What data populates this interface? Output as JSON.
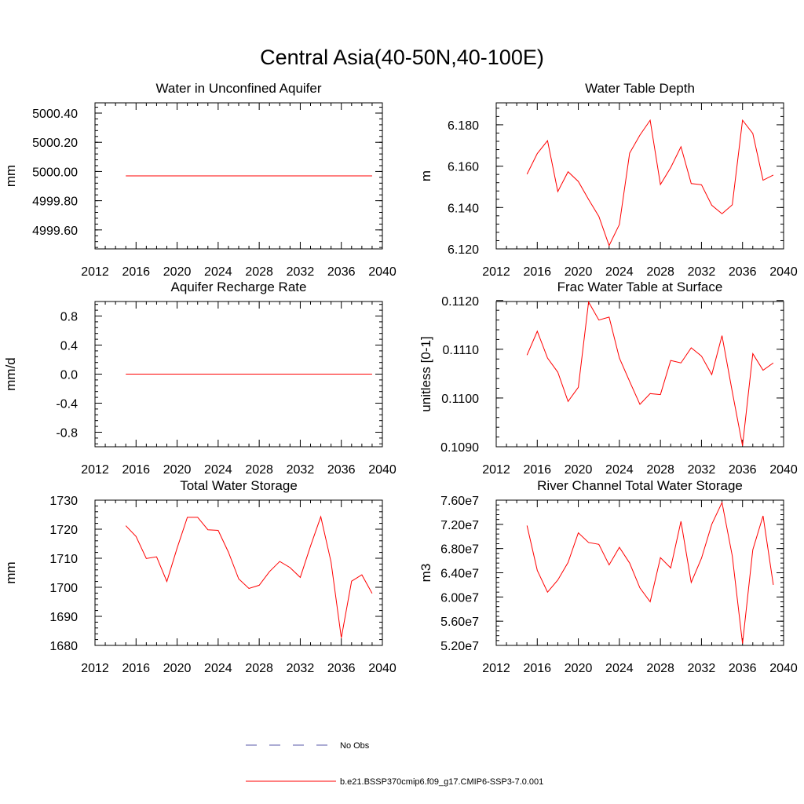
{
  "title": "Central Asia(40-50N,40-100E)",
  "legend": [
    {
      "label": "No Obs",
      "color": "#5a5aa8",
      "dash": "dashed"
    },
    {
      "label": "b.e21.BSSP370cmip6.f09_g17.CMIP6-SSP3-7.0.001",
      "color": "#ff0000",
      "dash": "solid"
    }
  ],
  "chart_data": [
    {
      "type": "line",
      "title": "Water in Unconfined Aquifer",
      "ylabel": "mm",
      "xlim": [
        2012,
        2040
      ],
      "ylim": [
        4999.47,
        5000.47
      ],
      "xticks": [
        2012,
        2016,
        2020,
        2024,
        2028,
        2032,
        2036,
        2040
      ],
      "yticks": [
        4999.6,
        4999.8,
        5000.0,
        5000.2,
        5000.4
      ],
      "ytick_labels": [
        "4999.60",
        "4999.80",
        "5000.00",
        "5000.20",
        "5000.40"
      ],
      "x": [
        2015,
        2016,
        2017,
        2018,
        2019,
        2020,
        2021,
        2022,
        2023,
        2024,
        2025,
        2026,
        2027,
        2028,
        2029,
        2030,
        2031,
        2032,
        2033,
        2034,
        2035,
        2036,
        2037,
        2038,
        2039
      ],
      "series": [
        {
          "color": "#ff0000",
          "values": [
            4999.97,
            4999.97,
            4999.97,
            4999.97,
            4999.97,
            4999.97,
            4999.97,
            4999.97,
            4999.97,
            4999.97,
            4999.97,
            4999.97,
            4999.97,
            4999.97,
            4999.97,
            4999.97,
            4999.97,
            4999.97,
            4999.97,
            4999.97,
            4999.97,
            4999.97,
            4999.97,
            4999.97,
            4999.97
          ]
        }
      ]
    },
    {
      "type": "line",
      "title": "Water Table Depth",
      "ylabel": "m",
      "xlim": [
        2012,
        2040
      ],
      "ylim": [
        6.12,
        6.1906
      ],
      "xticks": [
        2012,
        2016,
        2020,
        2024,
        2028,
        2032,
        2036,
        2040
      ],
      "yticks": [
        6.12,
        6.14,
        6.16,
        6.18
      ],
      "ytick_labels": [
        "6.120",
        "6.140",
        "6.160",
        "6.180"
      ],
      "x": [
        2015,
        2016,
        2017,
        2018,
        2019,
        2020,
        2021,
        2022,
        2023,
        2024,
        2025,
        2026,
        2027,
        2028,
        2029,
        2030,
        2031,
        2032,
        2033,
        2034,
        2035,
        2036,
        2037,
        2038,
        2039
      ],
      "series": [
        {
          "color": "#ff0000",
          "values": [
            6.1561,
            6.1661,
            6.1723,
            6.1477,
            6.1573,
            6.1526,
            6.1439,
            6.1357,
            6.1216,
            6.1318,
            6.1663,
            6.175,
            6.1822,
            6.1511,
            6.1593,
            6.1694,
            6.1516,
            6.151,
            6.1411,
            6.137,
            6.1413,
            6.1822,
            6.1758,
            6.1532,
            6.1557
          ]
        }
      ]
    },
    {
      "type": "line",
      "title": "Aquifer Recharge Rate",
      "ylabel": "mm/d",
      "xlim": [
        2012,
        2040
      ],
      "ylim": [
        -1.0,
        1.0
      ],
      "xticks": [
        2012,
        2016,
        2020,
        2024,
        2028,
        2032,
        2036,
        2040
      ],
      "yticks": [
        -0.8,
        -0.4,
        0.0,
        0.4,
        0.8
      ],
      "ytick_labels": [
        "-0.8",
        "-0.4",
        "0.0",
        "0.4",
        "0.8"
      ],
      "x": [
        2015,
        2016,
        2017,
        2018,
        2019,
        2020,
        2021,
        2022,
        2023,
        2024,
        2025,
        2026,
        2027,
        2028,
        2029,
        2030,
        2031,
        2032,
        2033,
        2034,
        2035,
        2036,
        2037,
        2038,
        2039
      ],
      "series": [
        {
          "color": "#ff0000",
          "values": [
            0,
            0,
            0,
            0,
            0,
            0,
            0,
            0,
            0,
            0,
            0,
            0,
            0,
            0,
            0,
            0,
            0,
            0,
            0,
            0,
            0,
            0,
            0,
            0,
            0
          ]
        }
      ]
    },
    {
      "type": "line",
      "title": "Frac Water Table at Surface",
      "ylabel": "unitless [0-1]",
      "xlim": [
        2012,
        2040
      ],
      "ylim": [
        0.109,
        0.11198
      ],
      "xticks": [
        2012,
        2016,
        2020,
        2024,
        2028,
        2032,
        2036,
        2040
      ],
      "yticks": [
        0.109,
        0.11,
        0.111,
        0.112
      ],
      "ytick_labels": [
        "0.1090",
        "0.1100",
        "0.1110",
        "0.1120"
      ],
      "x": [
        2015,
        2016,
        2017,
        2018,
        2019,
        2020,
        2021,
        2022,
        2023,
        2024,
        2025,
        2026,
        2027,
        2028,
        2029,
        2030,
        2031,
        2032,
        2033,
        2034,
        2035,
        2036,
        2037,
        2038,
        2039
      ],
      "series": [
        {
          "color": "#ff0000",
          "values": [
            0.11088,
            0.11137,
            0.11082,
            0.11053,
            0.10993,
            0.11022,
            0.11197,
            0.1116,
            0.11166,
            0.11082,
            0.11034,
            0.10987,
            0.11009,
            0.11007,
            0.11077,
            0.11072,
            0.11103,
            0.11086,
            0.11048,
            0.11128,
            0.11013,
            0.10902,
            0.11091,
            0.11057,
            0.11072
          ]
        }
      ]
    },
    {
      "type": "line",
      "title": "Total Water Storage",
      "ylabel": "mm",
      "xlim": [
        2012,
        2040
      ],
      "ylim": [
        1680,
        1730
      ],
      "xticks": [
        2012,
        2016,
        2020,
        2024,
        2028,
        2032,
        2036,
        2040
      ],
      "yticks": [
        1680,
        1690,
        1700,
        1710,
        1720,
        1730
      ],
      "ytick_labels": [
        "1680",
        "1690",
        "1700",
        "1710",
        "1720",
        "1730"
      ],
      "x": [
        2015,
        2016,
        2017,
        2018,
        2019,
        2020,
        2021,
        2022,
        2023,
        2024,
        2025,
        2026,
        2027,
        2028,
        2029,
        2030,
        2031,
        2032,
        2033,
        2034,
        2035,
        2036,
        2037,
        2038,
        2039
      ],
      "series": [
        {
          "color": "#ff0000",
          "values": [
            1721.2,
            1717.5,
            1709.9,
            1710.5,
            1702.0,
            1713.5,
            1724.1,
            1724.1,
            1719.8,
            1719.6,
            1712.1,
            1702.9,
            1699.6,
            1700.7,
            1705.4,
            1708.9,
            1706.8,
            1703.4,
            1714.2,
            1724.3,
            1708.7,
            1682.6,
            1702.1,
            1704.3,
            1697.9
          ]
        }
      ]
    },
    {
      "type": "line",
      "title": "River Channel Total Water Storage",
      "ylabel": "m3",
      "xlim": [
        2012,
        2040
      ],
      "ylim": [
        52000000,
        76000000
      ],
      "xticks": [
        2012,
        2016,
        2020,
        2024,
        2028,
        2032,
        2036,
        2040
      ],
      "yticks": [
        52000000,
        56000000,
        60000000,
        64000000,
        68000000,
        72000000,
        76000000
      ],
      "ytick_labels": [
        "5.20e7",
        "5.60e7",
        "6.00e7",
        "6.40e7",
        "6.80e7",
        "7.20e7",
        "7.60e7"
      ],
      "x": [
        2015,
        2016,
        2017,
        2018,
        2019,
        2020,
        2021,
        2022,
        2023,
        2024,
        2025,
        2026,
        2027,
        2028,
        2029,
        2030,
        2031,
        2032,
        2033,
        2034,
        2035,
        2036,
        2037,
        2038,
        2039
      ],
      "series": [
        {
          "color": "#ff0000",
          "values": [
            71800000,
            64400000,
            60800000,
            62800000,
            65700000,
            70600000,
            69000000,
            68700000,
            65300000,
            68200000,
            65600000,
            61500000,
            59200000,
            66500000,
            64800000,
            72500000,
            62400000,
            66400000,
            72000000,
            75600000,
            66800000,
            52300000,
            67800000,
            73400000,
            62000000
          ]
        }
      ]
    }
  ]
}
